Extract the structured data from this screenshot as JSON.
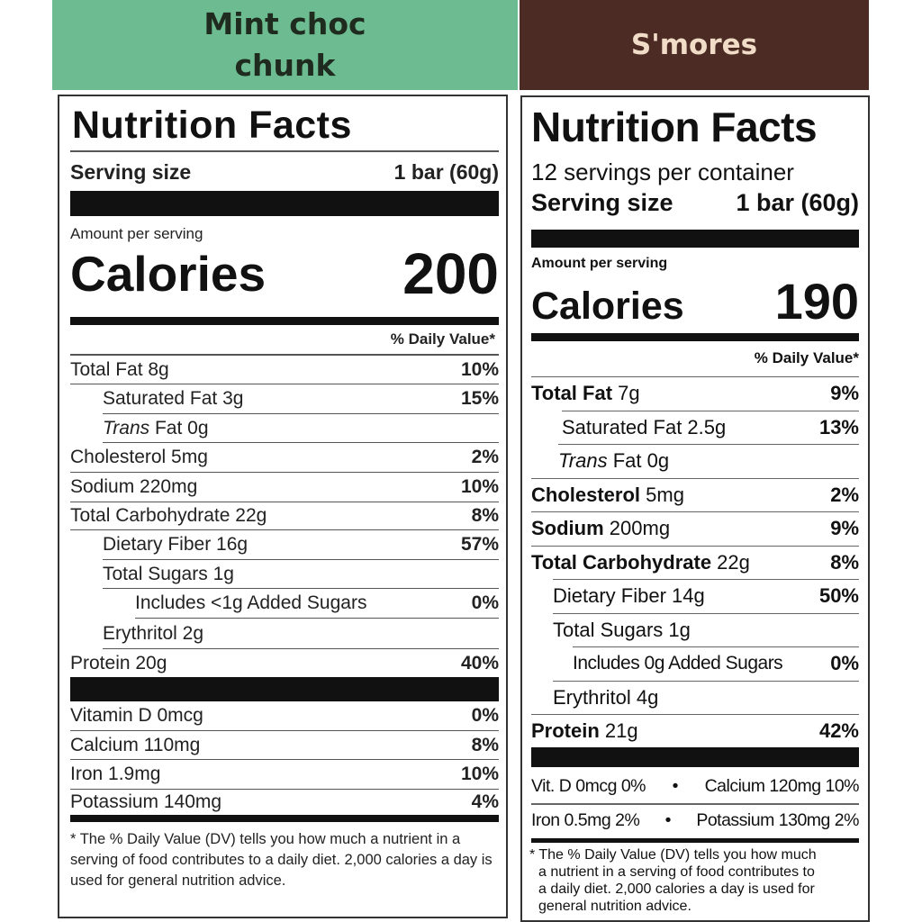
{
  "headers": {
    "left": [
      "Mint choc",
      "chunk"
    ],
    "right": "S'mores"
  },
  "mint": {
    "title": "Nutrition Facts",
    "serving_label": "Serving size",
    "serving_value": "1 bar (60g)",
    "amount_per_serving": "Amount per serving",
    "calories_label": "Calories",
    "calories_value": "200",
    "dv_header": "% Daily Value*",
    "nutrients": [
      {
        "label": "Total Fat 8g",
        "dv": "10%"
      },
      {
        "label": "Saturated Fat 3g",
        "dv": "15%"
      },
      {
        "label_italic": "Trans",
        "label": " Fat 0g",
        "dv": ""
      },
      {
        "label": "Cholesterol 5mg",
        "dv": "2%"
      },
      {
        "label": "Sodium 220mg",
        "dv": "10%"
      },
      {
        "label": "Total Carbohydrate 22g",
        "dv": "8%"
      },
      {
        "label": "Dietary Fiber 16g",
        "dv": "57%"
      },
      {
        "label": "Total Sugars 1g",
        "dv": ""
      },
      {
        "label": "Includes <1g Added Sugars",
        "dv": "0%"
      },
      {
        "label": "Erythritol 2g",
        "dv": ""
      },
      {
        "label": "Protein 20g",
        "dv": "40%"
      }
    ],
    "vitamins": [
      {
        "label": "Vitamin D 0mcg",
        "dv": "0%"
      },
      {
        "label": "Calcium 110mg",
        "dv": "8%"
      },
      {
        "label": "Iron 1.9mg",
        "dv": "10%"
      },
      {
        "label": "Potassium 140mg",
        "dv": "4%"
      }
    ],
    "footnote": "* The % Daily Value (DV) tells you how much a nutrient in a serving of food contributes to a daily diet. 2,000 calories a day is used for general nutrition advice."
  },
  "smores": {
    "title": "Nutrition Facts",
    "servings_per_container": "12 servings per container",
    "serving_label": "Serving size",
    "serving_value": "1 bar (60g)",
    "amount_per_serving": "Amount per serving",
    "calories_label": "Calories",
    "calories_value": "190",
    "dv_header": "% Daily Value*",
    "nutrients": [
      {
        "name": "Total Fat",
        "amount": " 7g",
        "dv": "9%"
      },
      {
        "name": "",
        "amount": "Saturated Fat 2.5g",
        "dv": "13%"
      },
      {
        "name": "",
        "italic": "Trans",
        "amount": " Fat 0g",
        "dv": ""
      },
      {
        "name": "Cholesterol",
        "amount": " 5mg",
        "dv": "2%"
      },
      {
        "name": "Sodium",
        "amount": " 200mg",
        "dv": "9%"
      },
      {
        "name": "Total Carbohydrate",
        "amount": " 22g",
        "dv": "8%"
      },
      {
        "name": "",
        "amount": "Dietary Fiber 14g",
        "dv": "50%"
      },
      {
        "name": "",
        "amount": "Total Sugars 1g",
        "dv": ""
      },
      {
        "name": "",
        "amount": "Includes 0g Added Sugars",
        "dv": "0%"
      },
      {
        "name": "",
        "amount": "Erythritol 4g",
        "dv": ""
      },
      {
        "name": "Protein",
        "amount": " 21g",
        "dv": "42%"
      }
    ],
    "vitamins": [
      {
        "left": "Vit. D 0mcg 0%",
        "right": "Calcium 120mg 10%"
      },
      {
        "left": "Iron 0.5mg 2%",
        "right": "Potassium 130mg 2%"
      }
    ],
    "bullet": "•",
    "footnote_lines": [
      "* The % Daily Value (DV) tells you how much",
      "a nutrient in a serving of food contributes to",
      "a daily diet. 2,000 calories a day is used for",
      "general nutrition advice."
    ]
  }
}
